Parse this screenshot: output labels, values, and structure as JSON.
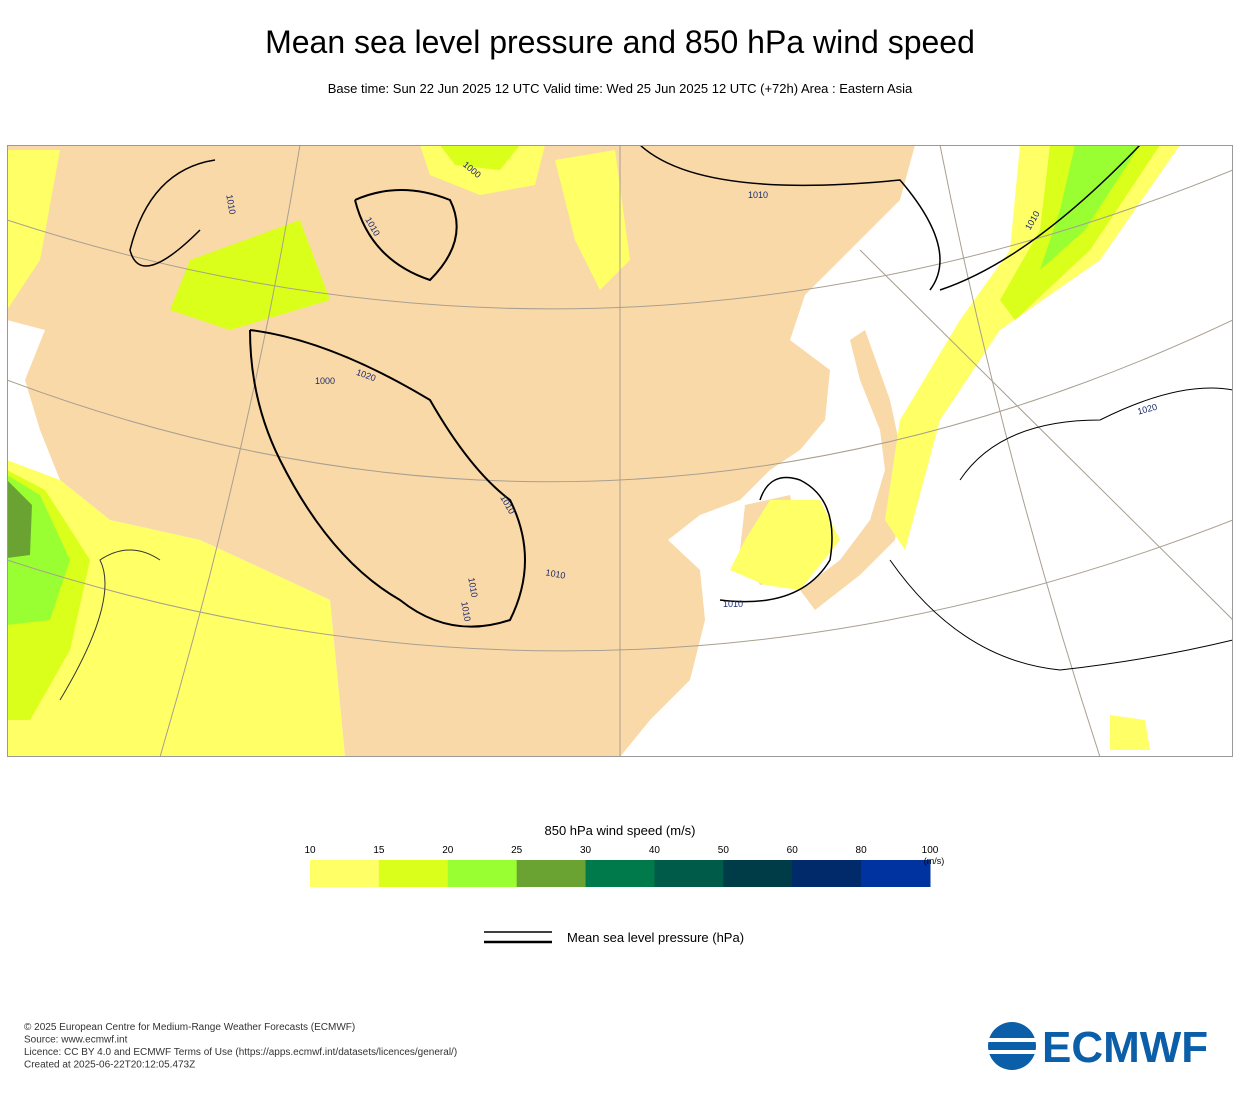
{
  "header": {
    "title": "Mean sea level pressure and 850 hPa wind speed",
    "subtitle": "Base time: Sun 22 Jun 2025 12 UTC Valid time: Wed 25 Jun 2025 12 UTC (+72h) Area : Eastern Asia"
  },
  "map": {
    "contour_labels": [
      "1000",
      "1010",
      "1010",
      "1010",
      "1010",
      "1020",
      "1000",
      "1020",
      "1010",
      "1010",
      "1010",
      "1010",
      "1010"
    ]
  },
  "colorbar": {
    "title": "850 hPa wind speed (m/s)",
    "ticks": [
      10,
      15,
      20,
      25,
      30,
      40,
      50,
      60,
      80,
      100
    ],
    "unit": "(m/s)",
    "colors": [
      "#ffff66",
      "#d9ff1a",
      "#99ff33",
      "#6aa332",
      "#007a4a",
      "#005c48",
      "#003c48",
      "#002a6a",
      "#0033a0"
    ]
  },
  "legend": {
    "label": "Mean sea level pressure (hPa)"
  },
  "footer": {
    "lines": [
      "© 2025 European Centre for Medium-Range Weather Forecasts (ECMWF)",
      "Source: www.ecmwf.int",
      "Licence: CC BY 4.0 and ECMWF Terms of Use (https://apps.ecmwf.int/datasets/licences/general/)",
      "Created at 2025-06-22T20:12:05.473Z"
    ],
    "logo": "ECMWF"
  }
}
